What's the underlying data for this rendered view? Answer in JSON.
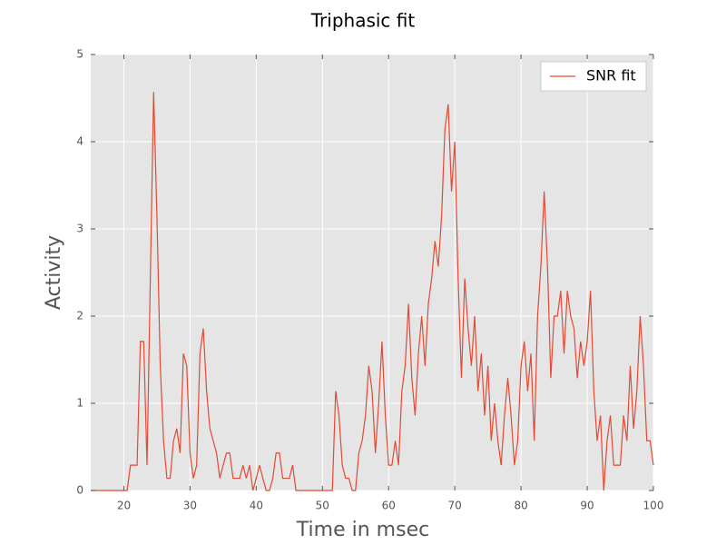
{
  "chart_data": {
    "type": "line",
    "title": "Triphasic fit",
    "xlabel": "Time in msec",
    "ylabel": "Activity",
    "x": [
      15,
      15.5,
      16,
      16.5,
      17,
      17.5,
      18,
      18.5,
      19,
      19.5,
      20,
      20.5,
      21,
      21.5,
      22,
      22.5,
      23,
      23.5,
      24,
      24.5,
      25,
      25.5,
      26,
      26.5,
      27,
      27.5,
      28,
      28.5,
      29,
      29.5,
      30,
      30.5,
      31,
      31.5,
      32,
      32.5,
      33,
      33.5,
      34,
      34.5,
      35,
      35.5,
      36,
      36.5,
      37,
      37.5,
      38,
      38.5,
      39,
      39.5,
      40,
      40.5,
      41,
      41.5,
      42,
      42.5,
      43,
      43.5,
      44,
      44.5,
      45,
      45.5,
      46,
      46.5,
      47,
      47.5,
      48,
      48.5,
      49,
      49.5,
      50,
      50.5,
      51,
      51.5,
      52,
      52.5,
      53,
      53.5,
      54,
      54.5,
      55,
      55.5,
      56,
      56.5,
      57,
      57.5,
      58,
      58.5,
      59,
      59.5,
      60,
      60.5,
      61,
      61.5,
      62,
      62.5,
      63,
      63.5,
      64,
      64.5,
      65,
      65.5,
      66,
      66.5,
      67,
      67.5,
      68,
      68.5,
      69,
      69.5,
      70,
      70.5,
      71,
      71.5,
      72,
      72.5,
      73,
      73.5,
      74,
      74.5,
      75,
      75.5,
      76,
      76.5,
      77,
      77.5,
      78,
      78.5,
      79,
      79.5,
      80,
      80.5,
      81,
      81.5,
      82,
      82.5,
      83,
      83.5,
      84,
      84.5,
      85,
      85.5,
      86,
      86.5,
      87,
      87.5,
      88,
      88.5,
      89,
      89.5,
      90,
      90.5,
      91,
      91.5,
      92,
      92.5,
      93,
      93.5,
      94,
      94.5,
      95,
      95.5,
      96,
      96.5,
      97,
      97.5,
      98,
      98.5,
      99,
      99.5,
      100
    ],
    "series": [
      {
        "name": "SNR fit",
        "color": "#e24a33",
        "values": [
          0,
          0,
          0,
          0,
          0,
          0,
          0,
          0,
          0,
          0,
          0,
          0,
          0.29,
          0.29,
          0.29,
          1.71,
          1.71,
          0.29,
          2.43,
          4.57,
          3.14,
          1.43,
          0.57,
          0.14,
          0.14,
          0.57,
          0.71,
          0.43,
          1.57,
          1.43,
          0.43,
          0.14,
          0.29,
          1.57,
          1.86,
          1.14,
          0.71,
          0.57,
          0.43,
          0.14,
          0.29,
          0.43,
          0.43,
          0.14,
          0.14,
          0.14,
          0.29,
          0.14,
          0.29,
          0,
          0.14,
          0.29,
          0.14,
          0,
          0,
          0.14,
          0.43,
          0.43,
          0.14,
          0.14,
          0.14,
          0.29,
          0,
          0,
          0,
          0,
          0,
          0,
          0,
          0,
          0,
          0,
          0,
          0,
          1.14,
          0.86,
          0.29,
          0.14,
          0.14,
          0,
          0,
          0.43,
          0.57,
          0.86,
          1.43,
          1.14,
          0.43,
          1.0,
          1.71,
          0.86,
          0.29,
          0.29,
          0.57,
          0.29,
          1.14,
          1.43,
          2.14,
          1.29,
          0.86,
          1.57,
          2.0,
          1.43,
          2.14,
          2.43,
          2.86,
          2.57,
          3.14,
          4.14,
          4.43,
          3.43,
          4.0,
          2.43,
          1.29,
          2.43,
          1.86,
          1.43,
          2.0,
          1.14,
          1.57,
          0.86,
          1.43,
          0.57,
          1.0,
          0.57,
          0.29,
          0.86,
          1.29,
          0.86,
          0.29,
          0.57,
          1.43,
          1.71,
          1.14,
          1.57,
          0.57,
          2.0,
          2.57,
          3.43,
          2.57,
          1.29,
          2.0,
          2.0,
          2.29,
          1.57,
          2.29,
          2.0,
          1.86,
          1.29,
          1.71,
          1.43,
          1.71,
          2.29,
          1.14,
          0.57,
          0.86,
          0,
          0.57,
          0.86,
          0.29,
          0.29,
          0.29,
          0.86,
          0.57,
          1.43,
          0.71,
          1.14,
          2.0,
          1.43,
          0.57,
          0.57,
          0.29
        ]
      }
    ],
    "xlim": [
      15,
      100
    ],
    "xticks": [
      20,
      30,
      40,
      50,
      60,
      70,
      80,
      90,
      100
    ],
    "ylim": [
      0,
      5
    ],
    "yticks": [
      0,
      1,
      2,
      3,
      4,
      5
    ],
    "grid": true,
    "legend": "upper right"
  }
}
